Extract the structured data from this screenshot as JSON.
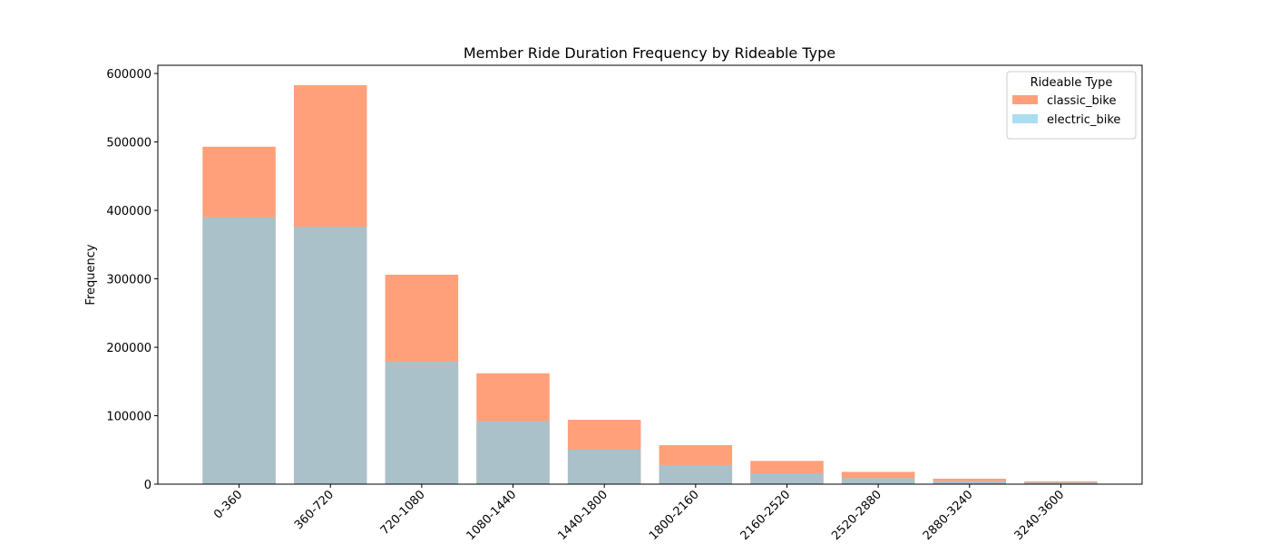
{
  "chart_data": {
    "type": "bar",
    "bar_mode": "overlay",
    "alpha": 0.7,
    "title": "Member Ride Duration Frequency by Rideable Type",
    "y_label": "Frequency",
    "legend_title": "Rideable Type",
    "legend": "upper right",
    "categories": [
      "0-360",
      "360-720",
      "720-1080",
      "1080-1440",
      "1440-1800",
      "1800-2160",
      "2160-2520",
      "2520-2880",
      "2880-3240",
      "3240-3600"
    ],
    "series": [
      {
        "name": "classic_bike",
        "color": "#ffa07a",
        "values": [
          493000,
          583000,
          306000,
          162000,
          94000,
          57000,
          34000,
          18000,
          8000,
          4000
        ]
      },
      {
        "name": "electric_bike",
        "color": "#87ceeb",
        "values": [
          390000,
          376000,
          179000,
          92000,
          51000,
          28000,
          16000,
          9000,
          4500,
          2500
        ]
      }
    ],
    "ylim": [
      0,
      612000
    ],
    "yticks": [
      0,
      100000,
      200000,
      300000,
      400000,
      500000,
      600000
    ]
  }
}
